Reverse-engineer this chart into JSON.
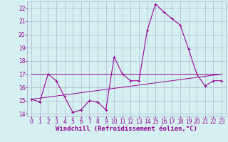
{
  "xlabel": "Windchill (Refroidissement éolien,°C)",
  "x_hours": [
    0,
    1,
    2,
    3,
    4,
    5,
    6,
    7,
    8,
    9,
    10,
    11,
    12,
    13,
    14,
    15,
    16,
    17,
    18,
    19,
    20,
    21,
    22,
    23
  ],
  "temp_line": [
    15.1,
    14.9,
    17.0,
    16.5,
    15.3,
    14.1,
    14.3,
    15.0,
    14.9,
    14.3,
    18.3,
    17.0,
    16.5,
    16.5,
    20.3,
    22.3,
    21.7,
    21.2,
    20.7,
    18.9,
    17.0,
    16.1,
    16.5,
    16.5
  ],
  "flat_line": [
    17.0,
    17.0,
    17.0,
    17.0,
    17.0,
    17.0,
    17.0,
    17.0,
    17.0,
    17.0,
    17.0,
    17.0,
    17.0,
    17.0,
    17.0,
    17.0,
    17.0,
    17.0,
    17.0,
    17.0,
    17.0,
    17.0,
    17.0,
    17.0
  ],
  "trend_line_x": [
    0,
    23
  ],
  "trend_line_y": [
    15.1,
    17.0
  ],
  "ylim": [
    13.8,
    22.5
  ],
  "yticks": [
    14,
    15,
    16,
    17,
    18,
    19,
    20,
    21,
    22
  ],
  "xticks": [
    0,
    1,
    2,
    3,
    4,
    5,
    6,
    7,
    8,
    9,
    10,
    11,
    12,
    13,
    14,
    15,
    16,
    17,
    18,
    19,
    20,
    21,
    22,
    23
  ],
  "line_color": "#990099",
  "bg_color": "#d4f0f0",
  "grid_color": "#aaaacc",
  "tick_label_fontsize": 5.5,
  "xlabel_fontsize": 6.5
}
